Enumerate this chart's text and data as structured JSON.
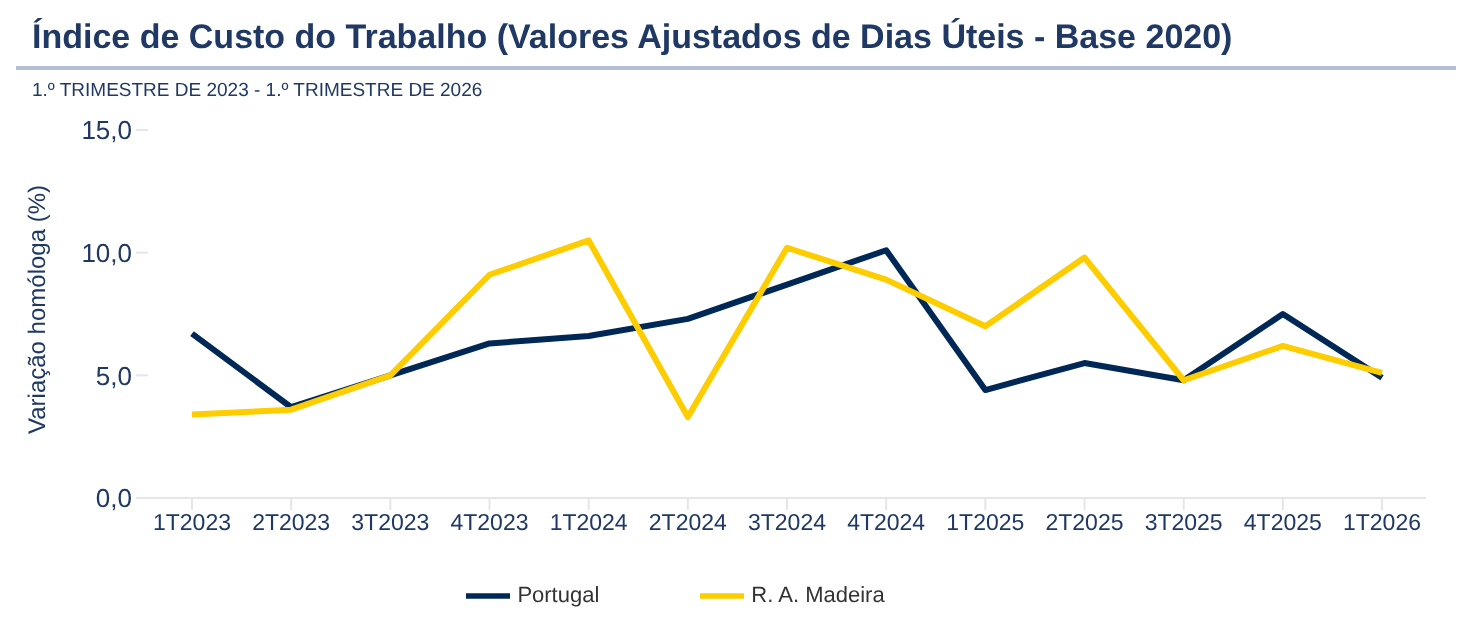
{
  "chart_data": {
    "type": "line",
    "title": "Índice de Custo do Trabalho (Valores Ajustados de Dias Úteis - Base 2020)",
    "subtitle": "1.º TRIMESTRE DE 2023 - 1.º TRIMESTRE DE 2026",
    "ylabel": "Variação homóloga (%)",
    "categories": [
      "1T2023",
      "2T2023",
      "3T2023",
      "4T2023",
      "1T2024",
      "2T2024",
      "3T2024",
      "4T2024",
      "1T2025",
      "2T2025",
      "3T2025",
      "4T2025",
      "1T2026"
    ],
    "series": [
      {
        "name": "Portugal",
        "color": "#002856",
        "values": [
          6.7,
          3.7,
          5.0,
          6.3,
          6.6,
          7.3,
          8.7,
          10.1,
          4.4,
          5.5,
          4.8,
          7.5,
          4.9
        ]
      },
      {
        "name": "R. A. Madeira",
        "color": "#fdcd00",
        "values": [
          3.4,
          3.6,
          5.0,
          9.1,
          10.5,
          3.3,
          10.2,
          8.9,
          7.0,
          9.8,
          4.8,
          6.2,
          5.1
        ]
      }
    ],
    "ylim": [
      0,
      15
    ],
    "yticks": [
      {
        "value": 0,
        "label": "0,0"
      },
      {
        "value": 5,
        "label": "5,0"
      },
      {
        "value": 10,
        "label": "10,0"
      },
      {
        "value": 15,
        "label": "15,0"
      }
    ],
    "grid": false,
    "legend": "bottom",
    "marker": "none",
    "line_style": "solid"
  }
}
